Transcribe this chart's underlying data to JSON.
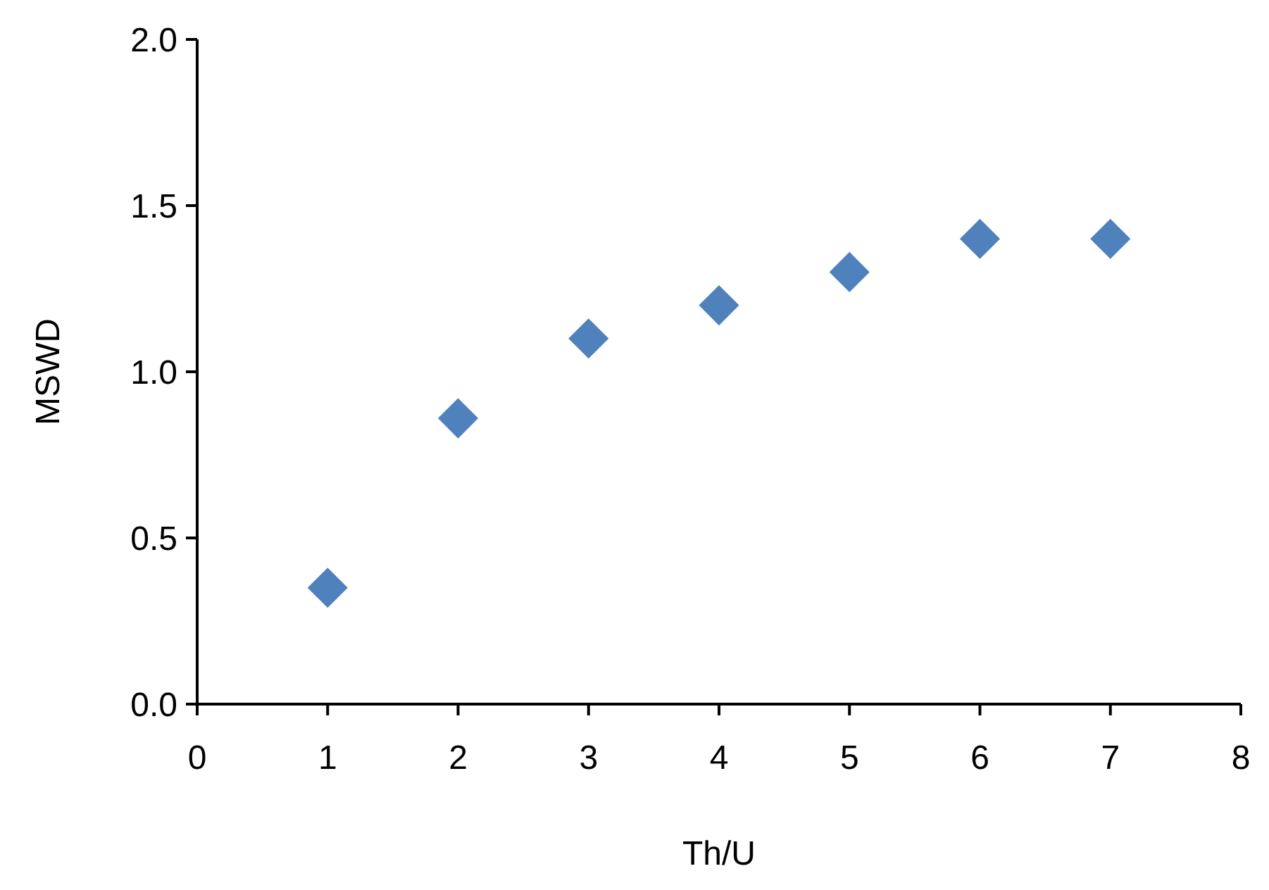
{
  "chart_data": {
    "type": "scatter",
    "xlabel": "Th/U",
    "ylabel": "MSWD",
    "x": [
      1,
      2,
      3,
      4,
      5,
      6,
      7
    ],
    "series": [
      {
        "color": "#4f81bd",
        "values": [
          0.35,
          0.86,
          1.1,
          1.2,
          1.3,
          1.4,
          1.4
        ]
      }
    ],
    "xlim": [
      0,
      8
    ],
    "ylim": [
      0,
      2
    ],
    "xticks": [
      0,
      1,
      2,
      3,
      4,
      5,
      6,
      7,
      8
    ],
    "yticks": [
      {
        "value": 0,
        "label": "0.0"
      },
      {
        "value": 0.5,
        "label": "0.5"
      },
      {
        "value": 1,
        "label": "1.0"
      },
      {
        "value": 1.5,
        "label": "1.5"
      },
      {
        "value": 2,
        "label": "2.0"
      }
    ],
    "marker": "diamond"
  }
}
